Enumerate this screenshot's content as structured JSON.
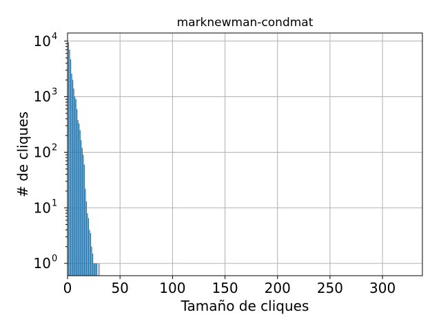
{
  "chart_data": {
    "type": "bar",
    "title": "marknewman-condmat",
    "xlabel": "Tamaño de cliques",
    "ylabel": "# de cliques",
    "yscale": "log",
    "grid": true,
    "xlim": [
      0,
      338
    ],
    "ylim": [
      0.6,
      14000
    ],
    "xticks": [
      0,
      50,
      100,
      150,
      200,
      250,
      300
    ],
    "yticks": [
      {
        "value": 1,
        "base": "10",
        "exp": "0"
      },
      {
        "value": 10,
        "base": "10",
        "exp": "1"
      },
      {
        "value": 100,
        "base": "10",
        "exp": "2"
      },
      {
        "value": 1000,
        "base": "10",
        "exp": "3"
      },
      {
        "value": 10000,
        "base": "10",
        "exp": "4"
      }
    ],
    "color": "#1f77b4",
    "x": [
      1,
      2,
      3,
      4,
      5,
      6,
      7,
      8,
      9,
      10,
      11,
      12,
      13,
      14,
      15,
      16,
      17,
      18,
      19,
      20,
      21,
      22,
      23,
      24,
      25,
      26,
      27,
      28,
      30
    ],
    "values": [
      9500,
      7000,
      4700,
      2600,
      2000,
      1400,
      1000,
      900,
      600,
      380,
      330,
      250,
      165,
      120,
      90,
      60,
      22,
      13,
      8,
      6.5,
      4,
      3.5,
      2,
      1.5,
      1,
      1,
      1,
      1,
      1
    ]
  }
}
